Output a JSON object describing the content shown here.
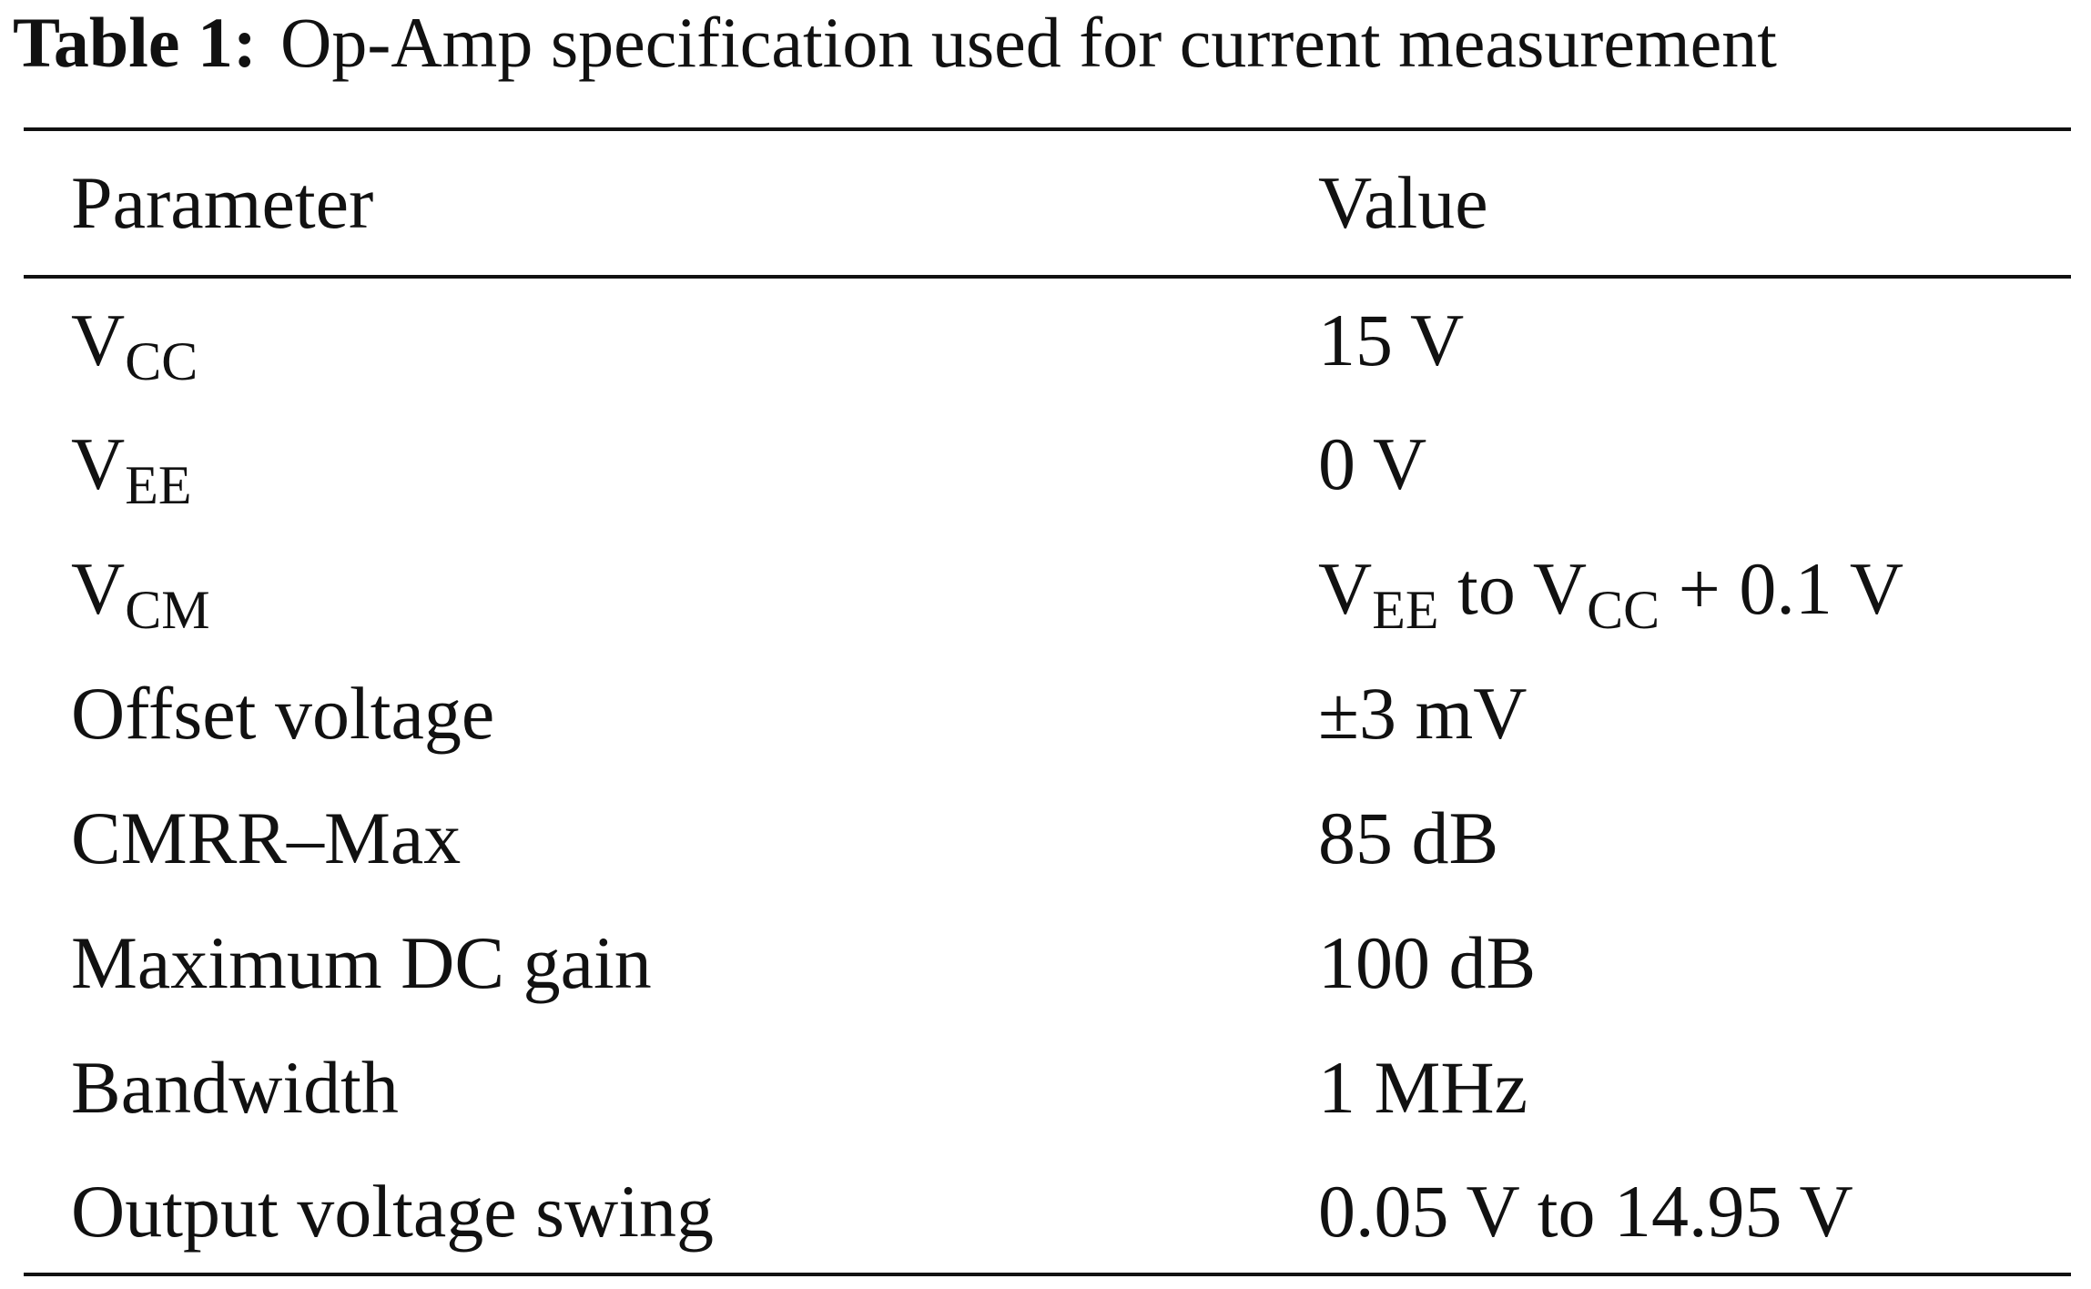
{
  "caption": {
    "label": "Table 1:",
    "text": "Op-Amp specification used for current measurement"
  },
  "table": {
    "header": [
      "Parameter",
      "Value"
    ],
    "rows": [
      [
        [
          {
            "text": "V",
            "sub": "CC"
          }
        ],
        "15 V"
      ],
      [
        [
          {
            "text": "V",
            "sub": "EE"
          }
        ],
        "0 V"
      ],
      [
        [
          {
            "text": "V",
            "sub": "CM"
          }
        ],
        [
          {
            "text": "V",
            "sub": "EE"
          },
          {
            "text": " to V",
            "sub": "CC"
          },
          {
            "text": " + 0.1 V"
          }
        ]
      ],
      [
        "Offset voltage",
        "±3 mV"
      ],
      [
        "CMRR–Max",
        "85 dB"
      ],
      [
        "Maximum DC gain",
        "100 dB"
      ],
      [
        "Bandwidth",
        "1 MHz"
      ],
      [
        "Output voltage swing",
        "0.05 V to 14.95 V"
      ]
    ]
  }
}
